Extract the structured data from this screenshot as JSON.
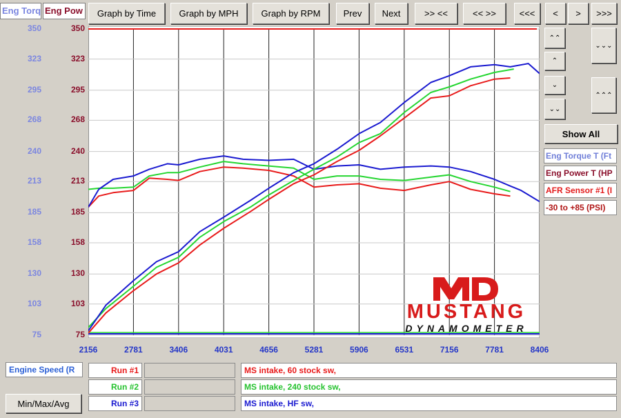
{
  "tabs": {
    "torque_tab": "Eng Torq",
    "power_tab": "Eng Pow"
  },
  "toolbar": {
    "graph_time": "Graph by Time",
    "graph_mph": "Graph by MPH",
    "graph_rpm": "Graph by RPM",
    "prev": "Prev",
    "next": "Next",
    "zoom_in": ">> <<",
    "zoom_out": "<< >>",
    "first": "<<<",
    "back": "<",
    "forward": ">",
    "last": ">>>"
  },
  "right_panel": {
    "show_all": "Show All",
    "legend": [
      "Eng Torque T (Ft",
      "Eng Power T (HP",
      "AFR Sensor #1 (I",
      "-30 to +85 (PSI)"
    ]
  },
  "bottom": {
    "x_channel": "Engine Speed (R",
    "minmax": "Min/Max/Avg",
    "runs": [
      {
        "label": "Run #1",
        "desc": "MS intake, 60 stock sw,"
      },
      {
        "label": "Run #2",
        "desc": "MS intake, 240 stock sw,"
      },
      {
        "label": "Run #3",
        "desc": "MS intake, HF sw,"
      }
    ]
  },
  "logo": {
    "line1": "MUSTANG",
    "line2": "DYNAMOMETER",
    "mark": "MD"
  },
  "colors": {
    "run1": "#e81b1b",
    "run2": "#25d631",
    "run3": "#1a1ad0",
    "left_axis": "#7b86e0",
    "right_axis": "#8a0f2b",
    "x_axis": "#2436c8"
  },
  "chart_data": {
    "type": "line",
    "x_ticks": [
      "2156",
      "2781",
      "3406",
      "4031",
      "4656",
      "5281",
      "5906",
      "6531",
      "7156",
      "7781",
      "8406"
    ],
    "y_left_ticks": [
      "350",
      "323",
      "295",
      "268",
      "240",
      "213",
      "185",
      "158",
      "130",
      "103",
      "75"
    ],
    "y_right_ticks": [
      "350",
      "323",
      "295",
      "268",
      "240",
      "213",
      "185",
      "158",
      "130",
      "103",
      "75"
    ],
    "xlim": [
      2156,
      8406
    ],
    "ylim": [
      75,
      350
    ],
    "grid": true,
    "series": [
      {
        "name": "Run #1",
        "color": "#e81b1b",
        "role": "torque",
        "x": [
          2156,
          2300,
          2500,
          2781,
          3000,
          3250,
          3406,
          3700,
          4031,
          4300,
          4656,
          5000,
          5281,
          5600,
          5906,
          6200,
          6531,
          6900,
          7156,
          7450,
          7781,
          8000
        ],
        "y": [
          190,
          200,
          203,
          205,
          216,
          215,
          214,
          222,
          226,
          225,
          223,
          218,
          208,
          210,
          211,
          207,
          205,
          210,
          213,
          206,
          202,
          200
        ]
      },
      {
        "name": "Run #2",
        "color": "#25d631",
        "role": "torque",
        "x": [
          2156,
          2300,
          2500,
          2781,
          3000,
          3250,
          3406,
          3700,
          4031,
          4300,
          4656,
          5000,
          5281,
          5600,
          5906,
          6200,
          6531,
          6900,
          7156,
          7450,
          7781,
          8000
        ],
        "y": [
          206,
          207,
          207,
          208,
          218,
          221,
          221,
          226,
          231,
          229,
          227,
          225,
          215,
          218,
          218,
          215,
          214,
          217,
          219,
          213,
          208,
          204
        ]
      },
      {
        "name": "Run #3",
        "color": "#1a1ad0",
        "role": "torque",
        "x": [
          2156,
          2300,
          2500,
          2781,
          3000,
          3250,
          3406,
          3700,
          4031,
          4300,
          4656,
          5000,
          5281,
          5600,
          5906,
          6200,
          6531,
          6900,
          7156,
          7450,
          7781,
          8000,
          8150,
          8406
        ],
        "y": [
          190,
          206,
          215,
          218,
          224,
          229,
          228,
          233,
          236,
          233,
          232,
          233,
          224,
          227,
          228,
          224,
          226,
          227,
          226,
          222,
          215,
          209,
          205,
          195
        ]
      },
      {
        "name": "Run #1",
        "color": "#e81b1b",
        "role": "power",
        "x": [
          2156,
          2400,
          2781,
          3100,
          3406,
          3700,
          4031,
          4400,
          4656,
          5000,
          5281,
          5600,
          5906,
          6200,
          6531,
          6900,
          7156,
          7450,
          7781,
          8000
        ],
        "y": [
          77,
          95,
          115,
          130,
          140,
          156,
          171,
          186,
          197,
          211,
          219,
          231,
          241,
          254,
          270,
          288,
          290,
          299,
          305,
          306
        ]
      },
      {
        "name": "Run #2",
        "color": "#25d631",
        "role": "power",
        "x": [
          2156,
          2400,
          2781,
          3100,
          3406,
          3700,
          4031,
          4400,
          4656,
          5000,
          5281,
          5600,
          5906,
          6200,
          6531,
          6900,
          7156,
          7450,
          7781,
          8050
        ],
        "y": [
          82,
          99,
          119,
          136,
          145,
          163,
          177,
          190,
          201,
          214,
          224,
          235,
          248,
          256,
          275,
          293,
          298,
          305,
          311,
          314
        ]
      },
      {
        "name": "Run #3",
        "color": "#1a1ad0",
        "role": "power",
        "x": [
          2156,
          2400,
          2781,
          3100,
          3406,
          3700,
          4031,
          4400,
          4656,
          5000,
          5281,
          5600,
          5906,
          6200,
          6531,
          6900,
          7156,
          7450,
          7781,
          8000,
          8250,
          8406
        ],
        "y": [
          79,
          102,
          124,
          141,
          150,
          168,
          181,
          196,
          207,
          221,
          229,
          242,
          256,
          266,
          284,
          302,
          308,
          316,
          318,
          316,
          319,
          310
        ]
      }
    ]
  }
}
